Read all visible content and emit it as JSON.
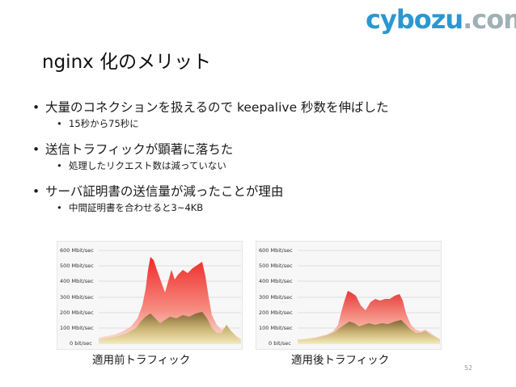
{
  "logo": {
    "main": "cybozu",
    "dotcom": ".com"
  },
  "title": "nginx 化のメリット",
  "bullets": [
    {
      "text": "大量のコネクションを扱えるので keepalive 秒数を伸ばした",
      "subs": [
        "15秒から75秒に"
      ]
    },
    {
      "text": "送信トラフィックが顕著に落ちた",
      "subs": [
        "処理したリクエスト数は減っていない"
      ]
    },
    {
      "text": "サーバ証明書の送信量が減ったことが理由",
      "subs": [
        "中間証明書を合わせると3~4KB"
      ]
    }
  ],
  "bullet_glyph": "•",
  "graphs": {
    "y_ticks": [
      "600 Mbit/sec",
      "500 Mbit/sec",
      "400 Mbit/sec",
      "300 Mbit/sec",
      "200 Mbit/sec",
      "100 Mbit/sec",
      "0 bit/sec"
    ],
    "before_caption": "適用前トラフィック",
    "after_caption": "適用後トラフィック"
  },
  "colors": {
    "brand": "#2a97d2",
    "dotcom": "#9fb0b6",
    "total_top": "#ee2a2a",
    "total_bottom": "#fbe6e0",
    "base_top": "#7e6634",
    "base_bottom": "#f2e8b4"
  },
  "page_number": "52"
}
